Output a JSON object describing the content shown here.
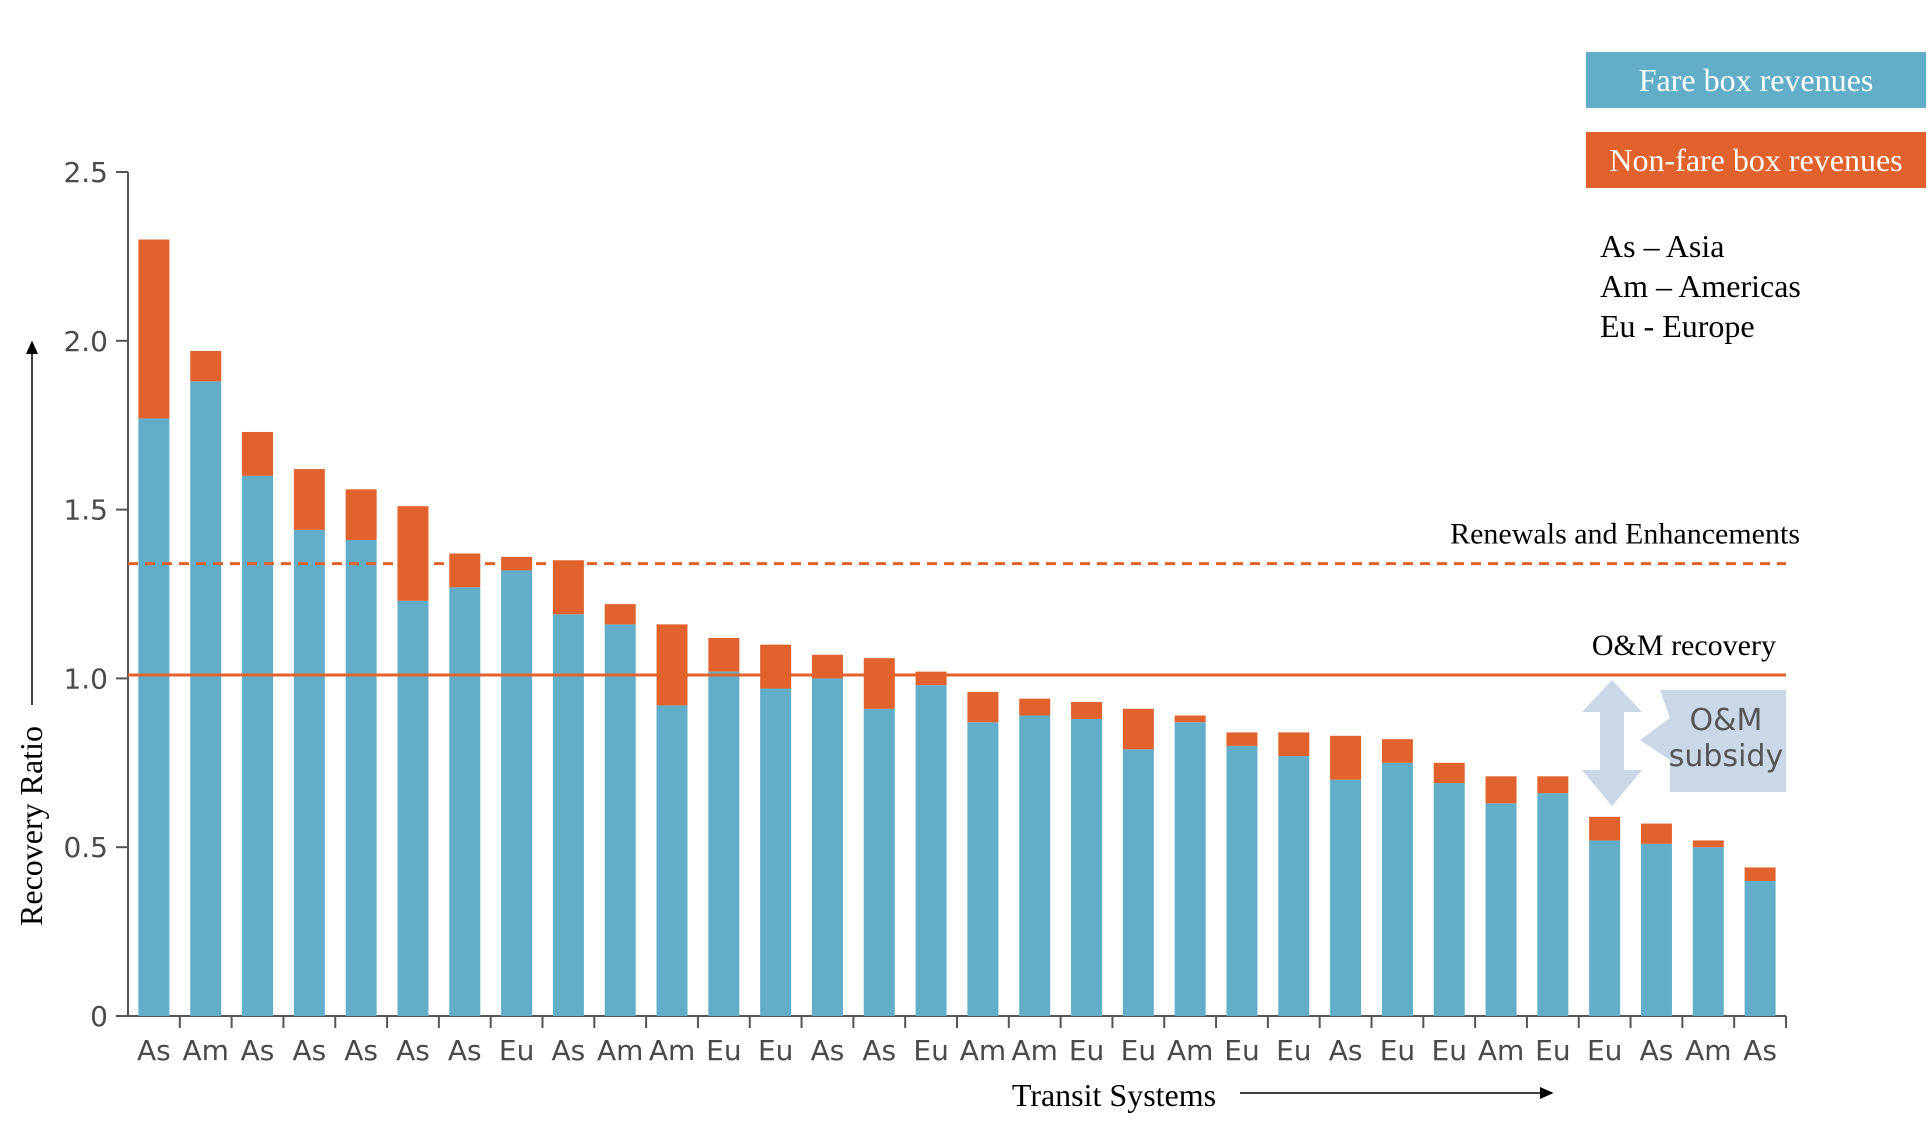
{
  "chart_data": {
    "type": "bar",
    "stacked": true,
    "xlabel": "Transit Systems",
    "ylabel": "Recovery Ratio",
    "ylim": [
      0,
      2.5
    ],
    "yticks": [
      "0",
      "0.5",
      "1.0",
      "1.5",
      "2.0",
      "2.5"
    ],
    "categories": [
      "As",
      "Am",
      "As",
      "As",
      "As",
      "As",
      "As",
      "Eu",
      "As",
      "Am",
      "Am",
      "Eu",
      "Eu",
      "As",
      "As",
      "Eu",
      "Am",
      "Am",
      "Eu",
      "Eu",
      "Am",
      "Eu",
      "Eu",
      "As",
      "Eu",
      "Eu",
      "Am",
      "Eu",
      "Eu",
      "As",
      "Am",
      "As"
    ],
    "series": [
      {
        "name": "Fare box revenues",
        "color": "#62aec9",
        "values": [
          1.77,
          1.88,
          1.6,
          1.44,
          1.41,
          1.23,
          1.27,
          1.32,
          1.19,
          1.16,
          0.92,
          1.02,
          0.97,
          1.0,
          0.91,
          0.98,
          0.87,
          0.89,
          0.88,
          0.79,
          0.87,
          0.8,
          0.77,
          0.7,
          0.75,
          0.69,
          0.63,
          0.66,
          0.52,
          0.51,
          0.5,
          0.4
        ]
      },
      {
        "name": "Non-fare box revenues",
        "color": "#e2622d",
        "values": [
          0.53,
          0.09,
          0.13,
          0.18,
          0.15,
          0.28,
          0.1,
          0.04,
          0.16,
          0.06,
          0.24,
          0.1,
          0.13,
          0.07,
          0.15,
          0.04,
          0.09,
          0.05,
          0.05,
          0.12,
          0.02,
          0.04,
          0.07,
          0.13,
          0.07,
          0.06,
          0.08,
          0.05,
          0.07,
          0.06,
          0.02,
          0.04
        ]
      }
    ],
    "reference_lines": [
      {
        "label": "Renewals and Enhancements",
        "value": 1.34,
        "style": "dashed",
        "color": "#e2622d"
      },
      {
        "label": "O&M recovery",
        "value": 1.01,
        "style": "solid",
        "color": "#e2622d"
      }
    ],
    "annotation": "O&M subsidy",
    "legend_position": "top-right"
  },
  "abbreviations": [
    "As – Asia",
    "Am – Americas",
    "Eu - Europe"
  ]
}
